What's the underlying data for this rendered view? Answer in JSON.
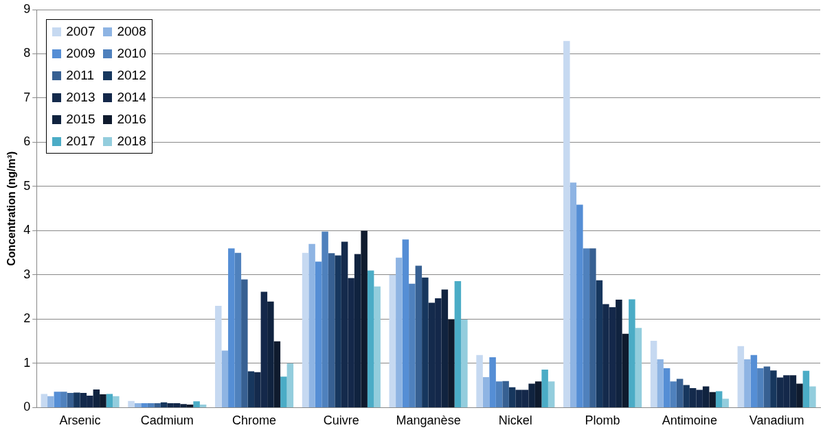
{
  "chart_data": {
    "type": "bar",
    "ylabel": "Concentration (ng/m³)",
    "categories": [
      "Arsenic",
      "Cadmium",
      "Chrome",
      "Cuivre",
      "Manganèse",
      "Nickel",
      "Plomb",
      "Antimoine",
      "Vanadium"
    ],
    "series": [
      {
        "name": "2007",
        "color": "#c6d9f1",
        "values": [
          0.31,
          0.15,
          2.3,
          3.5,
          3.0,
          1.19,
          8.29,
          1.51,
          1.39
        ]
      },
      {
        "name": "2008",
        "color": "#8eb4e3",
        "values": [
          0.26,
          0.1,
          1.29,
          3.7,
          3.39,
          0.69,
          5.09,
          1.09,
          1.09
        ]
      },
      {
        "name": "2009",
        "color": "#558ed5",
        "values": [
          0.36,
          0.1,
          3.6,
          3.3,
          3.8,
          1.14,
          4.59,
          0.89,
          1.19
        ]
      },
      {
        "name": "2010",
        "color": "#4f81bd",
        "values": [
          0.36,
          0.1,
          3.5,
          3.98,
          2.8,
          0.59,
          3.6,
          0.59,
          0.89
        ]
      },
      {
        "name": "2011",
        "color": "#376092",
        "values": [
          0.33,
          0.1,
          2.9,
          3.49,
          3.21,
          0.6,
          3.6,
          0.65,
          0.93
        ]
      },
      {
        "name": "2012",
        "color": "#17375e",
        "values": [
          0.34,
          0.12,
          0.82,
          3.44,
          2.94,
          0.46,
          2.88,
          0.51,
          0.84
        ]
      },
      {
        "name": "2013",
        "color": "#142a4c",
        "values": [
          0.33,
          0.1,
          0.8,
          3.75,
          2.37,
          0.4,
          2.34,
          0.44,
          0.68
        ]
      },
      {
        "name": "2014",
        "color": "#14284a",
        "values": [
          0.27,
          0.1,
          2.62,
          2.93,
          2.47,
          0.4,
          2.27,
          0.4,
          0.73
        ]
      },
      {
        "name": "2015",
        "color": "#10233f",
        "values": [
          0.41,
          0.08,
          2.4,
          3.47,
          2.67,
          0.54,
          2.44,
          0.48,
          0.73
        ]
      },
      {
        "name": "2016",
        "color": "#0f1b2e",
        "values": [
          0.3,
          0.07,
          1.5,
          4.0,
          1.99,
          0.59,
          1.67,
          0.35,
          0.54
        ]
      },
      {
        "name": "2017",
        "color": "#4bacc6",
        "values": [
          0.31,
          0.14,
          0.7,
          3.1,
          2.86,
          0.86,
          2.45,
          0.37,
          0.83
        ]
      },
      {
        "name": "2018",
        "color": "#93cddd",
        "values": [
          0.26,
          0.07,
          1.0,
          2.74,
          1.99,
          0.59,
          1.8,
          0.2,
          0.48
        ]
      }
    ],
    "ylim": [
      0,
      9
    ],
    "yticks": [
      0,
      1,
      2,
      3,
      4,
      5,
      6,
      7,
      8,
      9
    ],
    "grid": "y",
    "legend": "top left"
  }
}
